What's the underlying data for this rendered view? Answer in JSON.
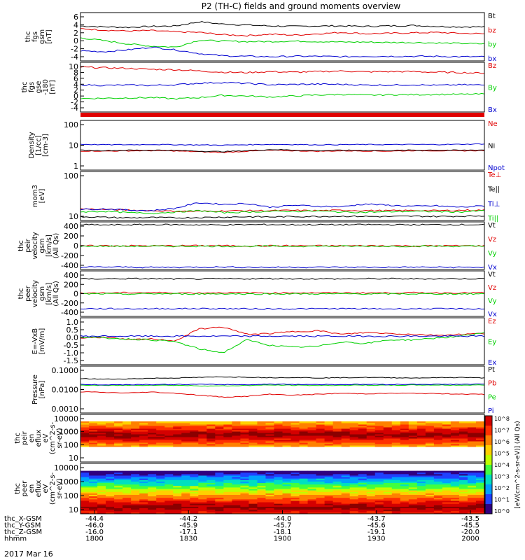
{
  "title": "P2 (TH-C) fields and ground moments overview",
  "date_label": "2017 Mar 16",
  "colors": {
    "black": "#000000",
    "red": "#e00000",
    "green": "#00d000",
    "blue": "#0000d0"
  },
  "chart_data": [
    {
      "type": "line",
      "id": "fgs",
      "ylabel": [
        "thc",
        "fgs",
        "gsm",
        "[nT]"
      ],
      "ylim": [
        -4,
        6.5
      ],
      "yticks": [
        "6",
        "4",
        "2",
        "0",
        "-2",
        "-4"
      ],
      "series": [
        {
          "name": "Bt",
          "color": "#000000",
          "values": [
            3.6,
            3.4,
            3.3,
            3.5,
            3.6,
            4.5,
            4.0,
            3.8,
            3.6,
            3.5,
            3.6,
            3.6,
            3.5,
            3.6,
            3.7,
            3.5,
            3.4,
            3.4
          ]
        },
        {
          "name": "bz",
          "color": "#e00000",
          "values": [
            3.0,
            2.7,
            2.5,
            2.6,
            2.3,
            2.2,
            1.7,
            1.5,
            1.8,
            1.6,
            1.9,
            2.2,
            1.9,
            2.0,
            2.1,
            2.2,
            2.0,
            1.9
          ]
        },
        {
          "name": "by",
          "color": "#00d000",
          "values": [
            1.0,
            0.4,
            -0.3,
            -0.8,
            -1.0,
            0.5,
            0.3,
            0.2,
            0.2,
            0.3,
            0.2,
            0.1,
            0.1,
            0.0,
            0.0,
            -0.1,
            -0.2,
            -0.3
          ]
        },
        {
          "name": "bx",
          "color": "#0000d0",
          "values": [
            -1.8,
            -2.0,
            -1.6,
            -1.0,
            -1.6,
            -2.4,
            -2.9,
            -3.0,
            -3.1,
            -3.0,
            -3.0,
            -3.1,
            -3.0,
            -3.0,
            -3.0,
            -3.0,
            -3.1,
            -3.1
          ]
        }
      ]
    },
    {
      "type": "line",
      "id": "fgs_gse",
      "ylabel": [
        "thc",
        "fgs",
        "gse",
        "-180",
        "[nT]"
      ],
      "ylim": [
        -5,
        10.5
      ],
      "yticks": [
        "10",
        "8",
        "6",
        "4",
        "2",
        "0",
        "-2",
        "-4"
      ],
      "series": [
        {
          "name": "Bz",
          "color": "#e00000",
          "values": [
            9.0,
            8.8,
            8.6,
            8.3,
            8.2,
            7.8,
            7.4,
            7.3,
            7.6,
            7.4,
            7.6,
            7.8,
            7.5,
            7.6,
            7.6,
            7.4,
            7.3,
            7.1
          ]
        },
        {
          "name": "By",
          "color": "#00d000",
          "values": [
            -0.8,
            -0.7,
            -0.6,
            -0.5,
            -0.9,
            -0.5,
            0.2,
            0.0,
            -0.3,
            0.0,
            0.3,
            0.5,
            0.2,
            0.4,
            0.4,
            0.5,
            0.5,
            0.6
          ]
        },
        {
          "name": "Bx",
          "color": "#0000d0",
          "values": [
            3.5,
            3.3,
            3.4,
            3.3,
            3.5,
            4.0,
            4.2,
            3.9,
            3.5,
            3.6,
            3.7,
            3.6,
            3.4,
            3.4,
            3.5,
            3.3,
            3.5,
            3.4
          ]
        }
      ]
    },
    {
      "type": "line",
      "id": "density",
      "ylabel": [
        "Density",
        "[1/cc]",
        "[cm-3]"
      ],
      "log": true,
      "ylim": [
        1,
        130
      ],
      "yticks": [
        "100",
        "10",
        "1"
      ],
      "series": [
        {
          "name": "Ne",
          "color": "#e00000",
          "values": [
            6.5,
            6.4,
            6.6,
            6.7,
            6.5,
            6.0,
            5.7,
            6.3,
            7.0,
            6.6,
            6.3,
            6.6,
            6.5,
            6.4,
            6.7,
            6.7,
            6.6,
            6.8
          ]
        },
        {
          "name": "Ni",
          "color": "#000000",
          "values": [
            7.0,
            6.8,
            7.0,
            7.1,
            6.9,
            6.4,
            6.1,
            6.7,
            7.5,
            7.1,
            6.7,
            7.0,
            6.9,
            6.8,
            7.1,
            7.1,
            7.0,
            7.2
          ]
        },
        {
          "name": "Npot",
          "color": "#0000d0",
          "values": [
            12.5,
            12.0,
            12.0,
            12.3,
            12.0,
            11.8,
            11.5,
            12.0,
            12.4,
            12.2,
            11.9,
            12.1,
            12.2,
            12.1,
            12.3,
            12.2,
            12.5,
            13.0
          ]
        }
      ]
    },
    {
      "type": "line",
      "id": "temp",
      "ylabel": [
        "mom3",
        "[eV]"
      ],
      "log": true,
      "ylim": [
        8,
        130
      ],
      "yticks": [
        "100",
        "10"
      ],
      "series": [
        {
          "name": "Te⊥",
          "color": "#e00000",
          "values": [
            15.5,
            15.0,
            14.5,
            14.0,
            13.5,
            13.5,
            13.8,
            14.0,
            14.0,
            14.2,
            14.0,
            14.3,
            14.1,
            14.0,
            14.2,
            14.0,
            14.3,
            14.5
          ]
        },
        {
          "name": "Te||",
          "color": "#000000",
          "values": [
            10.0,
            9.6,
            9.3,
            9.5,
            9.3,
            9.5,
            9.7,
            9.9,
            9.8,
            10.0,
            10.1,
            10.2,
            10.1,
            10.0,
            10.2,
            10.1,
            10.2,
            10.5
          ]
        },
        {
          "name": "Ti⊥",
          "color": "#0000d0",
          "values": [
            15.0,
            15.5,
            14.5,
            14.0,
            16.0,
            22.0,
            20.0,
            21.0,
            17.0,
            19.0,
            18.0,
            17.5,
            20.5,
            19.0,
            18.0,
            18.5,
            17.0,
            18.5
          ]
        },
        {
          "name": "Ti||",
          "color": "#00d000",
          "values": [
            13.0,
            13.5,
            12.5,
            12.0,
            13.0,
            14.0,
            12.5,
            13.0,
            13.5,
            13.5,
            13.8,
            13.0,
            12.8,
            13.2,
            13.5,
            13.3,
            13.0,
            14.0
          ]
        }
      ]
    },
    {
      "type": "line",
      "id": "peir_vel",
      "ylabel": [
        "thc",
        "peir",
        "velocity",
        "gsm",
        "[km/s]",
        "(All Qs)"
      ],
      "ylim": [
        -420,
        430
      ],
      "yticks": [
        "400",
        "200",
        "0",
        "-200",
        "-400"
      ],
      "series": [
        {
          "name": "Vt",
          "color": "#000000",
          "values": [
            380,
            375,
            378,
            382,
            380,
            378,
            375,
            380,
            382,
            378,
            380,
            379,
            381,
            380,
            378,
            380,
            381,
            380
          ]
        },
        {
          "name": "Vz",
          "color": "#e00000",
          "values": [
            0,
            5,
            3,
            2,
            4,
            6,
            5,
            3,
            2,
            4,
            3,
            2,
            4,
            3,
            2,
            3,
            4,
            3
          ]
        },
        {
          "name": "Vy",
          "color": "#00d000",
          "values": [
            -5,
            -3,
            -6,
            -4,
            -5,
            -3,
            -4,
            -6,
            -5,
            -4,
            -3,
            -5,
            -4,
            -5,
            -4,
            -3,
            -5,
            -4
          ]
        },
        {
          "name": "Vx",
          "color": "#0000d0",
          "values": [
            -380,
            -375,
            -378,
            -382,
            -380,
            -378,
            -375,
            -380,
            -382,
            -378,
            -380,
            -379,
            -381,
            -380,
            -378,
            -380,
            -381,
            -380
          ]
        }
      ]
    },
    {
      "type": "line",
      "id": "peer_vel",
      "ylabel": [
        "thc",
        "peer",
        "velocity",
        "gsm",
        "[km/s]",
        "(All Qs)"
      ],
      "ylim": [
        -420,
        430
      ],
      "yticks": [
        "400",
        "200",
        "0",
        "-200",
        "-400"
      ],
      "series": [
        {
          "name": "Vt",
          "color": "#000000",
          "values": [
            280,
            282,
            285,
            283,
            280,
            279,
            281,
            283,
            286,
            284,
            282,
            281,
            283,
            284,
            282,
            283,
            284,
            285
          ]
        },
        {
          "name": "Vz",
          "color": "#e00000",
          "values": [
            20,
            18,
            22,
            25,
            20,
            18,
            24,
            20,
            18,
            22,
            20,
            21,
            19,
            20,
            22,
            20,
            21,
            22
          ]
        },
        {
          "name": "Vy",
          "color": "#00d000",
          "values": [
            0,
            2,
            -3,
            4,
            1,
            0,
            3,
            -2,
            1,
            2,
            0,
            1,
            2,
            0,
            1,
            2,
            1,
            0
          ]
        },
        {
          "name": "Vx",
          "color": "#0000d0",
          "values": [
            -275,
            -277,
            -278,
            -276,
            -275,
            -274,
            -276,
            -278,
            -280,
            -279,
            -277,
            -276,
            -278,
            -279,
            -277,
            -278,
            -279,
            -280
          ]
        }
      ]
    },
    {
      "type": "line",
      "id": "efield",
      "ylabel": [
        "E=-VxB",
        "[mV/m]"
      ],
      "ylim": [
        -1.55,
        1.0
      ],
      "yticks": [
        "1.0",
        "0.5",
        "0.0",
        "-0.5",
        "-1.0",
        "-1.5"
      ],
      "series": [
        {
          "name": "Ez",
          "color": "#e00000",
          "values": [
            -0.1,
            -0.05,
            -0.2,
            -0.15,
            -0.25,
            0.4,
            0.5,
            0.1,
            0.15,
            0.25,
            0.3,
            0.1,
            0.2,
            0.15,
            0.1,
            0.05,
            0.1,
            0.15
          ]
        },
        {
          "name": "Ey",
          "color": "#00d000",
          "values": [
            -0.05,
            -0.1,
            -0.15,
            -0.2,
            -0.3,
            -0.7,
            -0.9,
            -0.2,
            -0.5,
            -0.6,
            -0.55,
            -0.3,
            -0.4,
            -0.2,
            -0.2,
            -0.1,
            0.0,
            0.2
          ]
        },
        {
          "name": "Ex",
          "color": "#0000d0",
          "values": [
            0.0,
            0.0,
            0.0,
            0.0,
            0.0,
            0.0,
            0.0,
            0.0,
            0.0,
            0.0,
            0.0,
            0.0,
            0.0,
            0.0,
            0.0,
            0.0,
            0.0,
            0.0
          ]
        }
      ]
    },
    {
      "type": "line",
      "id": "pressure",
      "ylabel": [
        "Pressure",
        "[nPa]"
      ],
      "log": true,
      "ylim": [
        0.0005,
        0.12
      ],
      "yticks": [
        "0.1000",
        "0.0100",
        "0.0010"
      ],
      "series": [
        {
          "name": "Pt",
          "color": "#000000",
          "values": [
            0.028,
            0.026,
            0.027,
            0.029,
            0.03,
            0.032,
            0.034,
            0.033,
            0.031,
            0.032,
            0.03,
            0.031,
            0.032,
            0.031,
            0.03,
            0.031,
            0.032,
            0.03
          ]
        },
        {
          "name": "Pb",
          "color": "#e00000",
          "values": [
            0.006,
            0.0055,
            0.0052,
            0.0058,
            0.005,
            0.004,
            0.0032,
            0.0035,
            0.0045,
            0.004,
            0.0045,
            0.005,
            0.0047,
            0.005,
            0.005,
            0.0048,
            0.0046,
            0.0044
          ]
        },
        {
          "name": "Pe",
          "color": "#00d000",
          "values": [
            0.013,
            0.0125,
            0.0128,
            0.013,
            0.0128,
            0.012,
            0.0118,
            0.0125,
            0.0132,
            0.0128,
            0.0125,
            0.0128,
            0.013,
            0.0128,
            0.0132,
            0.0132,
            0.013,
            0.0133
          ]
        },
        {
          "name": "Pi",
          "color": "#0000d0",
          "values": [
            0.014,
            0.0135,
            0.0138,
            0.014,
            0.014,
            0.0142,
            0.014,
            0.0138,
            0.0145,
            0.0142,
            0.014,
            0.014,
            0.0142,
            0.0141,
            0.0143,
            0.0142,
            0.0143,
            0.0145
          ]
        }
      ]
    },
    {
      "type": "heatmap",
      "id": "peir_spec",
      "ylabel": [
        "thc",
        "peir",
        "en",
        "eflux",
        "eV",
        "(cm^2-s-",
        "sr-eV)"
      ],
      "log": true,
      "ylim": [
        5,
        20000
      ],
      "yticks": [
        "10000",
        "1000",
        "100",
        "10"
      ],
      "band": [
        90,
        5000
      ],
      "peak_energy": 600
    },
    {
      "type": "heatmap",
      "id": "peer_spec",
      "ylabel": [
        "thc",
        "peer",
        "en",
        "eflux",
        "eV",
        "(cm^2-s-",
        "sr-eV)"
      ],
      "log": true,
      "ylim": [
        5,
        20000
      ],
      "yticks": [
        "10000",
        "1000",
        "100",
        "10"
      ],
      "band": [
        5,
        5000
      ],
      "peak_energy": 15
    },
    {
      "type": "colorbar",
      "label": "[eV/(cm^2-s-sr-eV)] (All Qs)",
      "ticks": [
        "10^8",
        "10^7",
        "10^6",
        "10^5",
        "10^4",
        "10^3",
        "10^2",
        "10^1",
        "10^0"
      ]
    }
  ],
  "xaxis": {
    "x": [
      1800,
      1830,
      1900,
      1930,
      2000
    ],
    "rows": [
      {
        "label": "thc_X-GSM",
        "values": [
          "-44.4",
          "-44.2",
          "-44.0",
          "-43.7",
          "-43.5"
        ]
      },
      {
        "label": "thc_Y-GSM",
        "values": [
          "-46.0",
          "-45.9",
          "-45.7",
          "-45.6",
          "-45.5"
        ]
      },
      {
        "label": "thc_Z-GSM",
        "values": [
          "-16.0",
          "-17.1",
          "-18.1",
          "-19.1",
          "-20.0"
        ]
      },
      {
        "label": "hhmm",
        "values": [
          "1800",
          "1830",
          "1900",
          "1930",
          "2000"
        ]
      }
    ]
  }
}
